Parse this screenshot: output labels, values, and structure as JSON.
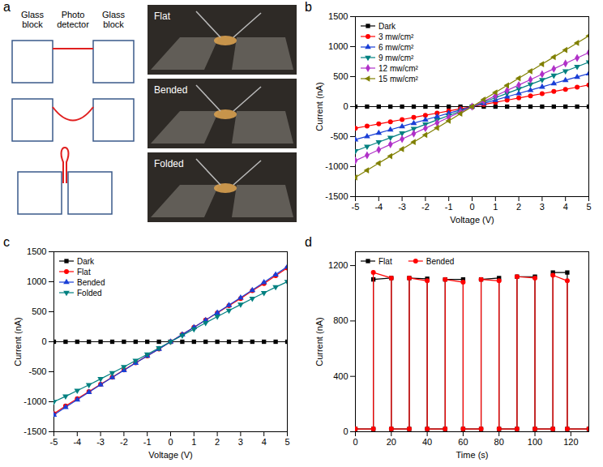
{
  "diagram": {
    "panel": "a",
    "labels": [
      "Glass block",
      "Photo detector",
      "Glass block"
    ],
    "photos": [
      "Flat",
      "Bended",
      "Folded"
    ]
  },
  "chart_data": [
    {
      "type": "line",
      "panel": "b",
      "x_label": "Voltage (V)",
      "y_label": "Current (nA)",
      "legend": "top-left",
      "grid": false,
      "xlim": [
        -5,
        5
      ],
      "xticks": [
        -5,
        -4,
        -3,
        -2,
        -1,
        0,
        1,
        2,
        3,
        4,
        5
      ],
      "ylim": [
        -1500,
        1500
      ],
      "yticks": [
        -1500,
        -1000,
        -500,
        0,
        500,
        1000,
        1500
      ],
      "x": [
        -5,
        -4.5,
        -4,
        -3.5,
        -3,
        -2.5,
        -2,
        -1.5,
        -1,
        -0.5,
        0,
        0.5,
        1,
        1.5,
        2,
        2.5,
        3,
        3.5,
        4,
        4.5,
        5
      ],
      "series": [
        {
          "name": "Dark",
          "color": "#000000",
          "marker": "square",
          "values": [
            0,
            0,
            0,
            0,
            0,
            0,
            0,
            0,
            0,
            0,
            0,
            0,
            0,
            0,
            0,
            0,
            0,
            0,
            0,
            0,
            0
          ]
        },
        {
          "name": "3 mw/cm²",
          "color": "#ff0000",
          "marker": "circle",
          "values": [
            -360,
            -324,
            -288,
            -252,
            -216,
            -180,
            -144,
            -108,
            -72,
            -36,
            0,
            36,
            72,
            108,
            144,
            180,
            216,
            252,
            288,
            324,
            360
          ]
        },
        {
          "name": "6 mw/cm²",
          "color": "#1a3fd6",
          "marker": "triangle",
          "values": [
            -550,
            -495,
            -440,
            -385,
            -330,
            -275,
            -220,
            -165,
            -110,
            -55,
            0,
            55,
            110,
            165,
            220,
            275,
            330,
            385,
            440,
            495,
            550
          ]
        },
        {
          "name": "9 mw/cm²",
          "color": "#008080",
          "marker": "triangle-down",
          "values": [
            -740,
            -666,
            -592,
            -518,
            -444,
            -370,
            -296,
            -222,
            -148,
            -74,
            0,
            74,
            148,
            222,
            296,
            370,
            444,
            518,
            592,
            666,
            740
          ]
        },
        {
          "name": "12 mw/cm²",
          "color": "#b030c8",
          "marker": "diamond",
          "values": [
            -900,
            -810,
            -720,
            -630,
            -540,
            -450,
            -360,
            -270,
            -180,
            -90,
            0,
            90,
            180,
            270,
            360,
            450,
            540,
            630,
            720,
            810,
            900
          ]
        },
        {
          "name": "15 mw/cm²",
          "color": "#808000",
          "marker": "triangle-left",
          "values": [
            -1180,
            -1062,
            -944,
            -826,
            -708,
            -590,
            -472,
            -354,
            -236,
            -118,
            0,
            118,
            236,
            354,
            472,
            590,
            708,
            826,
            944,
            1062,
            1180
          ]
        }
      ]
    },
    {
      "type": "line",
      "panel": "c",
      "x_label": "Voltage (V)",
      "y_label": "Current (nA)",
      "legend": "top-left",
      "grid": false,
      "xlim": [
        -5,
        5
      ],
      "xticks": [
        -5,
        -4,
        -3,
        -2,
        -1,
        0,
        1,
        2,
        3,
        4,
        5
      ],
      "ylim": [
        -1500,
        1500
      ],
      "yticks": [
        -1500,
        -1000,
        -500,
        0,
        500,
        1000,
        1500
      ],
      "x": [
        -5,
        -4.5,
        -4,
        -3.5,
        -3,
        -2.5,
        -2,
        -1.5,
        -1,
        -0.5,
        0,
        0.5,
        1,
        1.5,
        2,
        2.5,
        3,
        3.5,
        4,
        4.5,
        5
      ],
      "series": [
        {
          "name": "Dark",
          "color": "#000000",
          "marker": "square",
          "values": [
            0,
            0,
            0,
            0,
            0,
            0,
            0,
            0,
            0,
            0,
            0,
            0,
            0,
            0,
            0,
            0,
            0,
            0,
            0,
            0,
            0
          ]
        },
        {
          "name": "Flat",
          "color": "#ff0000",
          "marker": "circle",
          "values": [
            -1200,
            -1070,
            -950,
            -830,
            -710,
            -590,
            -470,
            -350,
            -235,
            -120,
            0,
            120,
            240,
            360,
            480,
            600,
            720,
            850,
            970,
            1100,
            1230
          ]
        },
        {
          "name": "Bended",
          "color": "#1a3fd6",
          "marker": "triangle",
          "values": [
            -1220,
            -1090,
            -965,
            -840,
            -715,
            -595,
            -475,
            -355,
            -235,
            -120,
            0,
            120,
            240,
            360,
            485,
            610,
            735,
            860,
            990,
            1120,
            1250
          ]
        },
        {
          "name": "Folded",
          "color": "#008080",
          "marker": "triangle-down",
          "values": [
            -1000,
            -910,
            -815,
            -720,
            -620,
            -520,
            -420,
            -315,
            -210,
            -105,
            0,
            105,
            210,
            315,
            420,
            520,
            620,
            720,
            815,
            910,
            1000
          ]
        }
      ]
    },
    {
      "type": "line",
      "panel": "d",
      "x_label": "Time (s)",
      "y_label": "Current (nA)",
      "legend": "top-left",
      "grid": false,
      "xlim": [
        0,
        130
      ],
      "xticks": [
        0,
        20,
        40,
        60,
        80,
        100,
        120
      ],
      "ylim": [
        0,
        1300
      ],
      "yticks": [
        0,
        400,
        800,
        1200
      ],
      "x": [
        0,
        10,
        10,
        20,
        20,
        30,
        30,
        40,
        40,
        50,
        50,
        60,
        60,
        70,
        70,
        80,
        80,
        90,
        90,
        100,
        100,
        110,
        110,
        118,
        118,
        130
      ],
      "series": [
        {
          "name": "Flat",
          "color": "#000000",
          "marker": "square",
          "values": [
            20,
            20,
            1100,
            1110,
            20,
            20,
            1110,
            1105,
            20,
            20,
            1100,
            1100,
            20,
            20,
            1100,
            1110,
            20,
            20,
            1120,
            1120,
            20,
            20,
            1150,
            1150,
            20,
            20
          ]
        },
        {
          "name": "Bended",
          "color": "#ff0000",
          "marker": "circle",
          "values": [
            20,
            20,
            1150,
            1110,
            20,
            20,
            1110,
            1090,
            20,
            20,
            1100,
            1080,
            20,
            20,
            1100,
            1090,
            20,
            20,
            1120,
            1110,
            20,
            20,
            1130,
            1090,
            20,
            20
          ]
        }
      ]
    }
  ]
}
